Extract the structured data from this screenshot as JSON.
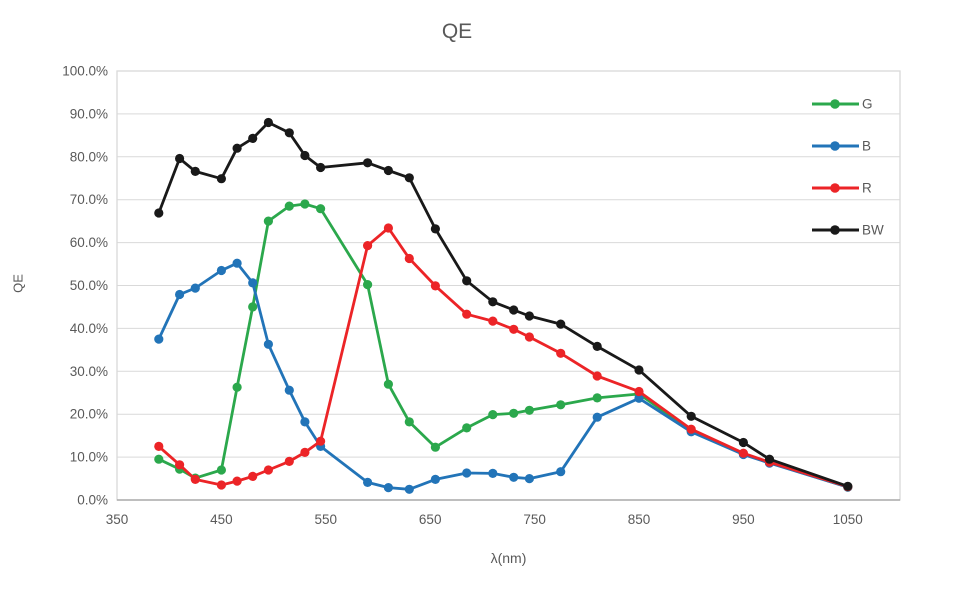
{
  "chart_data": {
    "type": "line",
    "title": "QE",
    "xlabel": "λ(nm)",
    "ylabel": "QE",
    "xlim": [
      350,
      1100
    ],
    "ylim": [
      0,
      100
    ],
    "grid": "horizontal",
    "legend_position": "top-right",
    "x_tick_labels": [
      "350",
      "450",
      "550",
      "650",
      "750",
      "850",
      "950",
      "1050"
    ],
    "x_tick_values": [
      350,
      450,
      550,
      650,
      750,
      850,
      950,
      1050
    ],
    "y_tick_labels": [
      "0.0%",
      "10.0%",
      "20.0%",
      "30.0%",
      "40.0%",
      "50.0%",
      "60.0%",
      "70.0%",
      "80.0%",
      "90.0%",
      "100.0%"
    ],
    "y_tick_values": [
      0,
      10,
      20,
      30,
      40,
      50,
      60,
      70,
      80,
      90,
      100
    ],
    "x": [
      390,
      410,
      425,
      450,
      465,
      480,
      495,
      515,
      530,
      545,
      590,
      610,
      630,
      655,
      685,
      710,
      730,
      745,
      775,
      810,
      850,
      900,
      950,
      975,
      1050
    ],
    "series": [
      {
        "name": "G",
        "color": "#2BA84C",
        "values": [
          9.5,
          7.2,
          5.1,
          7.0,
          26.3,
          45.0,
          65.0,
          68.5,
          69.0,
          67.9,
          50.2,
          27.0,
          18.2,
          12.3,
          16.8,
          19.9,
          20.2,
          20.9,
          22.2,
          23.8,
          24.7,
          16.2,
          10.7,
          8.7,
          3.0
        ]
      },
      {
        "name": "B",
        "color": "#2274B8",
        "values": [
          37.5,
          47.9,
          49.4,
          53.5,
          55.2,
          50.6,
          36.3,
          25.6,
          18.2,
          12.5,
          4.1,
          2.9,
          2.5,
          4.8,
          6.3,
          6.2,
          5.3,
          5.0,
          6.6,
          19.3,
          23.7,
          15.9,
          10.6,
          8.6,
          3.0
        ]
      },
      {
        "name": "R",
        "color": "#EC2427",
        "values": [
          12.5,
          8.2,
          4.8,
          3.5,
          4.4,
          5.5,
          7.0,
          9.0,
          11.1,
          13.7,
          59.3,
          63.4,
          56.3,
          49.9,
          43.3,
          41.7,
          39.8,
          38.0,
          34.2,
          28.9,
          25.3,
          16.5,
          10.9,
          8.8,
          3.1
        ]
      },
      {
        "name": "BW",
        "color": "#191919",
        "values": [
          66.9,
          79.6,
          76.6,
          74.9,
          82.0,
          84.3,
          88.0,
          85.6,
          80.3,
          77.5,
          78.6,
          76.8,
          75.1,
          63.2,
          51.1,
          46.2,
          44.3,
          42.9,
          41.0,
          35.8,
          30.3,
          19.5,
          13.4,
          9.5,
          3.2
        ]
      }
    ],
    "style_colors": {
      "tick_text": "#595959",
      "title_text": "#595959",
      "gridline": "#D9D9D9",
      "plot_border": "#D9D9D9",
      "axis_line": "#9E9E9E"
    }
  }
}
